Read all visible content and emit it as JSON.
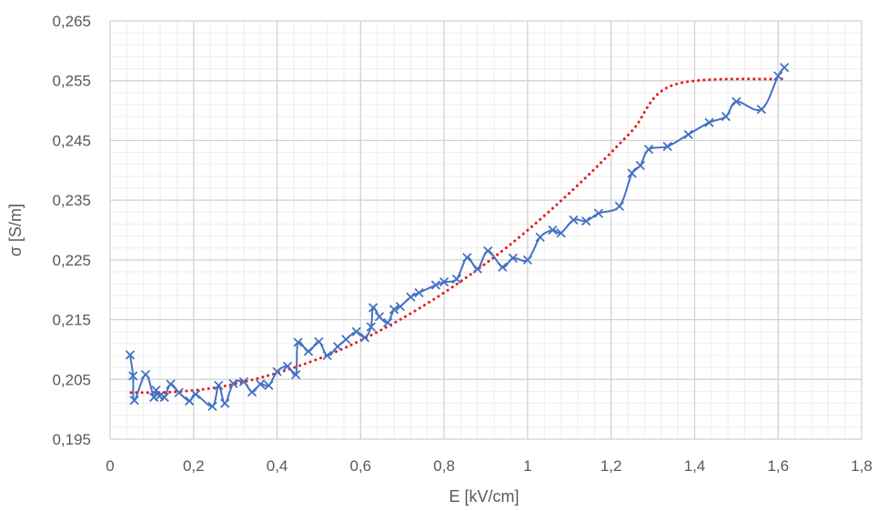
{
  "chart_data": {
    "type": "scatter",
    "title": "",
    "xlabel": "E [kV/cm]",
    "ylabel": "σ [S/m]",
    "xlim": [
      0,
      1.8
    ],
    "ylim": [
      0.195,
      0.265
    ],
    "x_major_ticks": [
      0,
      0.2,
      0.4,
      0.6,
      0.8,
      1,
      1.2,
      1.4,
      1.6,
      1.8
    ],
    "x_tick_labels": [
      "0",
      "0,2",
      "0,4",
      "0,6",
      "0,8",
      "1",
      "1,2",
      "1,4",
      "1,6",
      "1,8"
    ],
    "y_major_ticks": [
      0.195,
      0.205,
      0.215,
      0.225,
      0.235,
      0.245,
      0.255,
      0.265
    ],
    "y_tick_labels": [
      "0,195",
      "0,205",
      "0,215",
      "0,225",
      "0,235",
      "0,245",
      "0,255",
      "0,265"
    ],
    "x_minor_step": 0.04,
    "y_minor_step": 0.002,
    "grid": true,
    "legend": "none",
    "series": [
      {
        "style": "line-with-x-markers",
        "color": "#4472c4",
        "points": [
          [
            0.048,
            0.2091
          ],
          [
            0.055,
            0.2056
          ],
          [
            0.058,
            0.2015
          ],
          [
            0.085,
            0.2058
          ],
          [
            0.105,
            0.202
          ],
          [
            0.11,
            0.2032
          ],
          [
            0.118,
            0.2022
          ],
          [
            0.13,
            0.202
          ],
          [
            0.145,
            0.2042
          ],
          [
            0.165,
            0.2028
          ],
          [
            0.19,
            0.2014
          ],
          [
            0.205,
            0.2025
          ],
          [
            0.245,
            0.2005
          ],
          [
            0.26,
            0.204
          ],
          [
            0.275,
            0.201
          ],
          [
            0.295,
            0.2043
          ],
          [
            0.32,
            0.2046
          ],
          [
            0.34,
            0.2029
          ],
          [
            0.36,
            0.2042
          ],
          [
            0.38,
            0.204
          ],
          [
            0.4,
            0.2063
          ],
          [
            0.425,
            0.2072
          ],
          [
            0.445,
            0.2058
          ],
          [
            0.45,
            0.2112
          ],
          [
            0.475,
            0.2097
          ],
          [
            0.5,
            0.2113
          ],
          [
            0.52,
            0.209
          ],
          [
            0.545,
            0.2105
          ],
          [
            0.565,
            0.2117
          ],
          [
            0.59,
            0.213
          ],
          [
            0.61,
            0.212
          ],
          [
            0.625,
            0.2138
          ],
          [
            0.63,
            0.217
          ],
          [
            0.645,
            0.2155
          ],
          [
            0.665,
            0.2145
          ],
          [
            0.68,
            0.2167
          ],
          [
            0.695,
            0.2172
          ],
          [
            0.72,
            0.2188
          ],
          [
            0.74,
            0.2195
          ],
          [
            0.78,
            0.2208
          ],
          [
            0.8,
            0.2213
          ],
          [
            0.83,
            0.2218
          ],
          [
            0.855,
            0.2254
          ],
          [
            0.88,
            0.2235
          ],
          [
            0.905,
            0.2265
          ],
          [
            0.94,
            0.2238
          ],
          [
            0.965,
            0.2253
          ],
          [
            1.0,
            0.225
          ],
          [
            1.03,
            0.2288
          ],
          [
            1.06,
            0.23
          ],
          [
            1.08,
            0.2295
          ],
          [
            1.11,
            0.2317
          ],
          [
            1.14,
            0.2315
          ],
          [
            1.17,
            0.2328
          ],
          [
            1.22,
            0.234
          ],
          [
            1.25,
            0.2395
          ],
          [
            1.27,
            0.2408
          ],
          [
            1.29,
            0.2435
          ],
          [
            1.335,
            0.244
          ],
          [
            1.385,
            0.246
          ],
          [
            1.435,
            0.248
          ],
          [
            1.475,
            0.249
          ],
          [
            1.5,
            0.2515
          ],
          [
            1.56,
            0.2502
          ],
          [
            1.6,
            0.2558
          ],
          [
            1.615,
            0.2572
          ]
        ]
      },
      {
        "style": "dotted-trendline",
        "color": "#e81a1a",
        "points": [
          [
            0.05,
            0.2028
          ],
          [
            0.15,
            0.2029
          ],
          [
            0.25,
            0.2036
          ],
          [
            0.35,
            0.2051
          ],
          [
            0.45,
            0.2072
          ],
          [
            0.55,
            0.2099
          ],
          [
            0.65,
            0.2133
          ],
          [
            0.75,
            0.2173
          ],
          [
            0.85,
            0.2219
          ],
          [
            0.95,
            0.2271
          ],
          [
            1.05,
            0.233
          ],
          [
            1.15,
            0.2395
          ],
          [
            1.25,
            0.2466
          ],
          [
            1.35,
            0.2543
          ],
          [
            1.62,
            0.2553
          ]
        ]
      }
    ]
  }
}
